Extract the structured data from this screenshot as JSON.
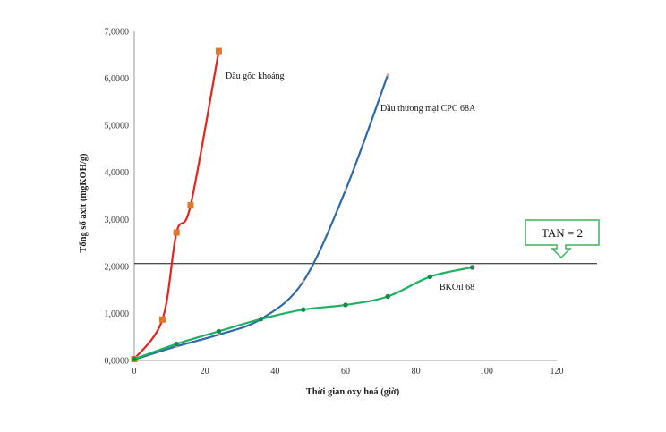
{
  "chart_data": {
    "type": "line",
    "title": "",
    "xlabel": "Thời gian oxy hoá (giờ)",
    "ylabel": "Tổng số axit (mgKOH/g)",
    "xlim": [
      0,
      120
    ],
    "ylim": [
      0,
      7
    ],
    "xticks": [
      0,
      20,
      40,
      60,
      80,
      100,
      120
    ],
    "xtick_labels": [
      "0",
      "20",
      "40",
      "60",
      "80",
      "100",
      "120"
    ],
    "yticks": [
      0,
      1,
      2,
      3,
      4,
      5,
      6,
      7
    ],
    "ytick_labels": [
      "0,0000",
      "1,0000",
      "2,0000",
      "3,0000",
      "4,0000",
      "5,0000",
      "6,0000",
      "7,0000"
    ],
    "grid": false,
    "legend": "inline labels",
    "series": [
      {
        "name": "Dầu gốc khoáng",
        "color": "#e8221c",
        "marker": "square",
        "marker_color": "#e0782a",
        "x": [
          0,
          8,
          12,
          16,
          24
        ],
        "y": [
          0.03,
          0.87,
          2.72,
          3.3,
          6.58
        ]
      },
      {
        "name": "Dầu thương mại CPC 68A",
        "color": "#2e6aa8",
        "marker": "small-dot",
        "marker_color": "#e8a0a0",
        "x": [
          0,
          12,
          24,
          36,
          48,
          60,
          72
        ],
        "y": [
          0.02,
          0.3,
          0.55,
          0.88,
          1.68,
          3.62,
          6.07
        ]
      },
      {
        "name": "BKOil 68",
        "color": "#1fb061",
        "marker": "circle",
        "marker_color": "#158a4a",
        "x": [
          0,
          12,
          24,
          36,
          48,
          60,
          72,
          84,
          96
        ],
        "y": [
          0.03,
          0.35,
          0.62,
          0.88,
          1.08,
          1.18,
          1.36,
          1.78,
          1.98
        ]
      }
    ],
    "threshold": {
      "y": 2.06,
      "label": "TAN = 2",
      "line_color": "#111111",
      "box_color": "#3db360"
    }
  }
}
